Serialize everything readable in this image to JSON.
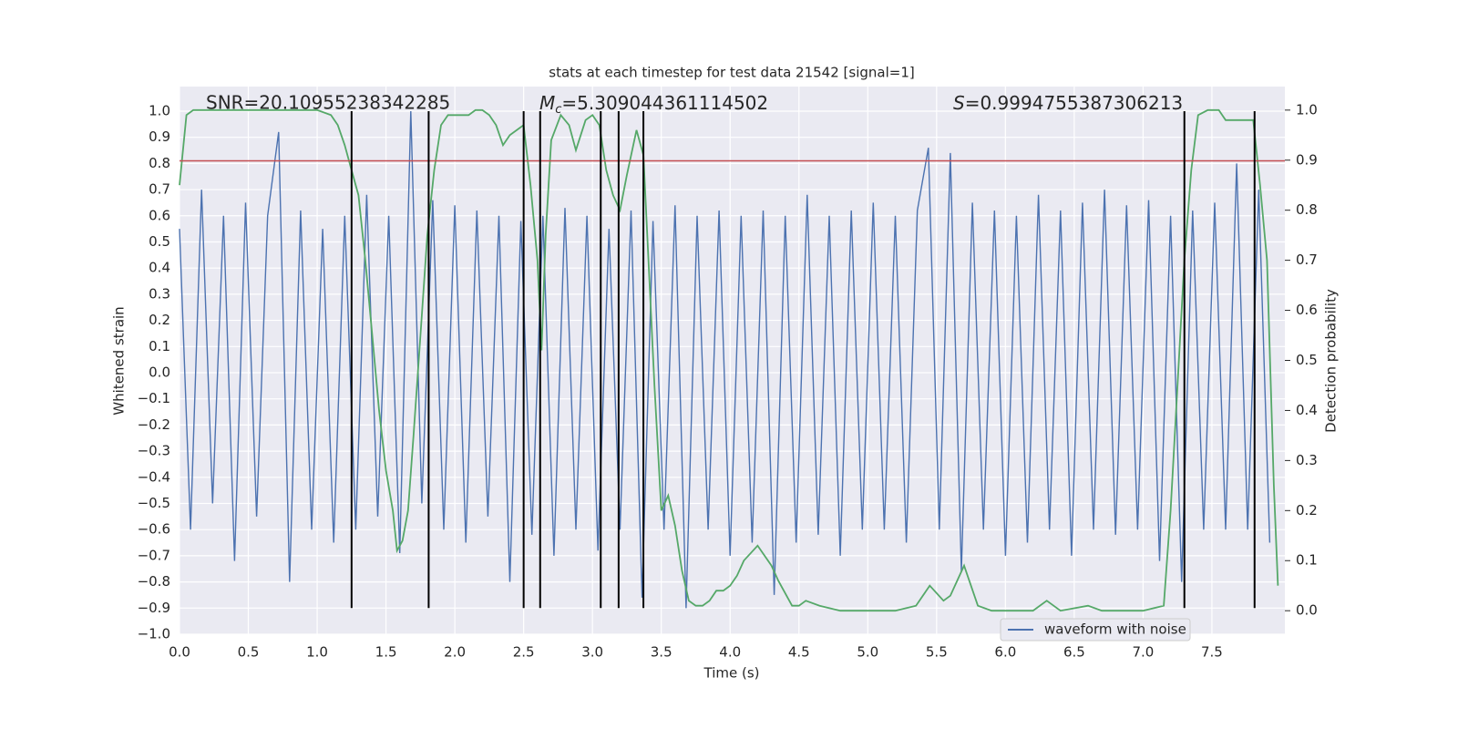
{
  "chart_data": {
    "type": "line",
    "title": "stats at each timestep for test data 21542 [signal=1]",
    "xlabel": "Time (s)",
    "ylabel": "Whitened strain",
    "y2label": "Detection probability",
    "annotations": {
      "snr": "SNR=20.10955238342285",
      "chirp_mass": {
        "symbol": "M",
        "subscript": "c",
        "text": "=5.309044361114502"
      },
      "score": {
        "symbol": "S",
        "text": "=0.9994755387306213"
      }
    },
    "xlim": [
      0,
      8.03
    ],
    "ylim": [
      -1.0,
      1.094
    ],
    "y2lim": [
      -0.047,
      1.047
    ],
    "xticks": [
      {
        "value": 0,
        "label": "0.0"
      },
      0.5,
      {
        "value": 1,
        "label": "1.0"
      },
      1.5,
      {
        "value": 2,
        "label": "2.0"
      },
      2.5,
      {
        "value": 3,
        "label": "3.0"
      },
      3.5,
      {
        "value": 4,
        "label": "4.0"
      },
      4.5,
      {
        "value": 5,
        "label": "5.0"
      },
      5.5,
      {
        "value": 6,
        "label": "6.0"
      },
      6.5,
      {
        "value": 7,
        "label": "7.0"
      },
      7.5
    ],
    "yticks": [
      {
        "value": -1,
        "label": "−1.0"
      },
      {
        "value": -0.9,
        "label": "−0.9"
      },
      {
        "value": -0.8,
        "label": "−0.8"
      },
      {
        "value": -0.7,
        "label": "−0.7"
      },
      {
        "value": -0.6,
        "label": "−0.6"
      },
      {
        "value": -0.5,
        "label": "−0.5"
      },
      {
        "value": -0.4,
        "label": "−0.4"
      },
      {
        "value": -0.3,
        "label": "−0.3"
      },
      {
        "value": -0.2,
        "label": "−0.2"
      },
      {
        "value": -0.1,
        "label": "−0.1"
      },
      {
        "value": 0,
        "label": "0.0"
      },
      0.1,
      0.2,
      0.3,
      0.4,
      0.5,
      0.6,
      0.7,
      0.8,
      0.9,
      {
        "value": 1,
        "label": "1.0"
      }
    ],
    "y2ticks": [
      {
        "value": 0,
        "label": "0.0"
      },
      0.1,
      0.2,
      0.3,
      0.4,
      0.5,
      0.6,
      0.7,
      0.8,
      0.9,
      {
        "value": 1,
        "label": "1.0"
      }
    ],
    "grid": true,
    "legend": "lower right",
    "series": [
      {
        "name": "waveform with noise",
        "color": "#4c72b0",
        "x": [
          0,
          0.08,
          0.16,
          0.24,
          0.32,
          0.4,
          0.48,
          0.56,
          0.64,
          0.72,
          0.8,
          0.88,
          0.96,
          1.04,
          1.12,
          1.2,
          1.28,
          1.36,
          1.44,
          1.52,
          1.6,
          1.68,
          1.76,
          1.84,
          1.92,
          2.0,
          2.08,
          2.16,
          2.24,
          2.32,
          2.4,
          2.48,
          2.56,
          2.64,
          2.72,
          2.8,
          2.88,
          2.96,
          3.04,
          3.12,
          3.2,
          3.28,
          3.36,
          3.44,
          3.52,
          3.6,
          3.68,
          3.76,
          3.84,
          3.92,
          4.0,
          4.08,
          4.16,
          4.24,
          4.32,
          4.4,
          4.48,
          4.56,
          4.64,
          4.72,
          4.8,
          4.88,
          4.96,
          5.04,
          5.12,
          5.2,
          5.28,
          5.36,
          5.44,
          5.52,
          5.6,
          5.68,
          5.76,
          5.84,
          5.92,
          6.0,
          6.08,
          6.16,
          6.24,
          6.32,
          6.4,
          6.48,
          6.56,
          6.64,
          6.72,
          6.8,
          6.88,
          6.96,
          7.04,
          7.12,
          7.2,
          7.28,
          7.36,
          7.44,
          7.52,
          7.6,
          7.68,
          7.76,
          7.84,
          7.92
        ],
        "values": [
          0.55,
          -0.6,
          0.7,
          -0.5,
          0.6,
          -0.72,
          0.65,
          -0.55,
          0.6,
          0.92,
          -0.8,
          0.62,
          -0.6,
          0.55,
          -0.65,
          0.6,
          -0.6,
          0.68,
          -0.55,
          0.6,
          -0.69,
          1.0,
          -0.5,
          0.66,
          -0.6,
          0.64,
          -0.65,
          0.62,
          -0.55,
          0.6,
          -0.8,
          0.58,
          -0.62,
          0.6,
          -0.7,
          0.63,
          -0.6,
          0.6,
          -0.68,
          0.55,
          -0.6,
          0.62,
          -0.86,
          0.58,
          -0.6,
          0.64,
          -0.9,
          0.6,
          -0.6,
          0.62,
          -0.7,
          0.6,
          -0.65,
          0.62,
          -0.85,
          0.6,
          -0.65,
          0.68,
          -0.62,
          0.6,
          -0.7,
          0.62,
          -0.6,
          0.65,
          -0.6,
          0.6,
          -0.65,
          0.62,
          0.86,
          -0.6,
          0.84,
          -0.76,
          0.65,
          -0.6,
          0.62,
          -0.7,
          0.6,
          -0.65,
          0.68,
          -0.6,
          0.62,
          -0.7,
          0.65,
          -0.6,
          0.7,
          -0.62,
          0.64,
          -0.6,
          0.66,
          -0.72,
          0.6,
          -0.8,
          0.62,
          -0.6,
          0.65,
          -0.6,
          0.8,
          -0.6,
          0.7,
          -0.65
        ]
      },
      {
        "color": "#55a868",
        "axis": "y2",
        "x": [
          0,
          0.05,
          0.1,
          0.3,
          0.5,
          0.7,
          0.9,
          1.0,
          1.1,
          1.15,
          1.2,
          1.25,
          1.3,
          1.35,
          1.4,
          1.45,
          1.5,
          1.55,
          1.58,
          1.62,
          1.66,
          1.7,
          1.75,
          1.8,
          1.85,
          1.9,
          1.95,
          2.0,
          2.1,
          2.15,
          2.2,
          2.25,
          2.3,
          2.35,
          2.4,
          2.5,
          2.55,
          2.6,
          2.63,
          2.66,
          2.7,
          2.77,
          2.83,
          2.88,
          2.95,
          3.0,
          3.05,
          3.1,
          3.15,
          3.2,
          3.25,
          3.32,
          3.37,
          3.45,
          3.5,
          3.55,
          3.6,
          3.65,
          3.7,
          3.75,
          3.8,
          3.85,
          3.9,
          3.95,
          4.0,
          4.05,
          4.1,
          4.2,
          4.25,
          4.3,
          4.35,
          4.45,
          4.5,
          4.55,
          4.65,
          4.8,
          5.0,
          5.2,
          5.35,
          5.45,
          5.55,
          5.6,
          5.7,
          5.8,
          5.9,
          6.2,
          6.3,
          6.4,
          6.6,
          6.7,
          7.0,
          7.15,
          7.2,
          7.25,
          7.3,
          7.35,
          7.4,
          7.47,
          7.55,
          7.6,
          7.7,
          7.8,
          7.85,
          7.9,
          7.95,
          7.98
        ],
        "values": [
          0.85,
          0.99,
          1.0,
          1.0,
          1.0,
          1.0,
          1.0,
          1.0,
          0.99,
          0.97,
          0.93,
          0.88,
          0.83,
          0.7,
          0.55,
          0.4,
          0.28,
          0.2,
          0.12,
          0.14,
          0.2,
          0.35,
          0.55,
          0.75,
          0.88,
          0.97,
          0.99,
          0.99,
          0.99,
          1.0,
          1.0,
          0.99,
          0.97,
          0.93,
          0.95,
          0.97,
          0.85,
          0.7,
          0.52,
          0.75,
          0.94,
          0.99,
          0.97,
          0.92,
          0.98,
          0.99,
          0.97,
          0.88,
          0.83,
          0.8,
          0.87,
          0.96,
          0.91,
          0.45,
          0.2,
          0.23,
          0.17,
          0.08,
          0.02,
          0.01,
          0.01,
          0.02,
          0.04,
          0.04,
          0.05,
          0.07,
          0.1,
          0.13,
          0.11,
          0.09,
          0.06,
          0.01,
          0.01,
          0.02,
          0.01,
          0.0,
          0.0,
          0.0,
          0.01,
          0.05,
          0.02,
          0.03,
          0.09,
          0.01,
          0.0,
          0.0,
          0.02,
          0.0,
          0.01,
          0.0,
          0.0,
          0.01,
          0.2,
          0.45,
          0.7,
          0.88,
          0.99,
          1.0,
          1.0,
          0.98,
          0.98,
          0.98,
          0.85,
          0.7,
          0.25,
          0.05
        ]
      }
    ],
    "threshold": {
      "value": 0.81,
      "color": "#c44e52"
    },
    "vlines": {
      "x": [
        1.25,
        1.81,
        2.5,
        2.62,
        3.06,
        3.19,
        3.37,
        7.3,
        7.81
      ],
      "ylim": [
        -0.9,
        1.0
      ],
      "color": "#000000"
    }
  }
}
